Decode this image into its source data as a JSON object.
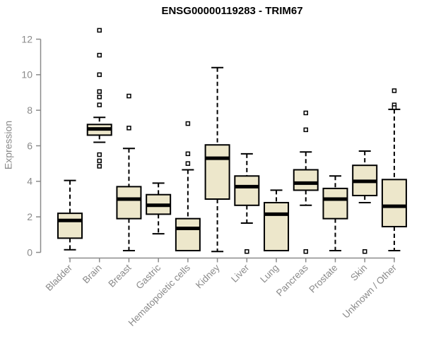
{
  "chart_data": {
    "type": "boxplot",
    "title": "ENSG00000119283 - TRIM67",
    "ylabel": "Expression",
    "xlabel": "",
    "ylim": [
      0,
      12
    ],
    "yticks": [
      0,
      2,
      4,
      6,
      8,
      10,
      12
    ],
    "grid": false,
    "legend": "none",
    "categories": [
      "Bladder",
      "Brain",
      "Breast",
      "Gastric",
      "Hematopoietic cells",
      "Kidney",
      "Liver",
      "Lung",
      "Pancreas",
      "Prostate",
      "Skin",
      "Unknown / Other"
    ],
    "series": [
      {
        "category": "Bladder",
        "low": 0.15,
        "q1": 0.8,
        "median": 1.8,
        "q3": 2.2,
        "high": 4.05,
        "outliers": []
      },
      {
        "category": "Brain",
        "low": 6.2,
        "q1": 6.6,
        "median": 6.95,
        "q3": 7.2,
        "high": 7.6,
        "outliers": [
          12.5,
          11.1,
          10.0,
          9.05,
          8.75,
          8.3,
          5.5,
          5.15,
          4.85
        ]
      },
      {
        "category": "Breast",
        "low": 0.1,
        "q1": 1.9,
        "median": 3.0,
        "q3": 3.7,
        "high": 5.85,
        "outliers": [
          8.8,
          7.0
        ]
      },
      {
        "category": "Gastric",
        "low": 1.05,
        "q1": 2.15,
        "median": 2.65,
        "q3": 3.25,
        "high": 3.9,
        "outliers": []
      },
      {
        "category": "Hematopoietic cells",
        "low": 0.1,
        "q1": 0.1,
        "median": 1.35,
        "q3": 1.9,
        "high": 4.65,
        "outliers": [
          7.25,
          5.55,
          5.0
        ]
      },
      {
        "category": "Kidney",
        "low": 0.05,
        "q1": 3.0,
        "median": 5.3,
        "q3": 6.05,
        "high": 10.4,
        "outliers": []
      },
      {
        "category": "Liver",
        "low": 1.65,
        "q1": 2.65,
        "median": 3.7,
        "q3": 4.3,
        "high": 5.55,
        "outliers": [
          0.05
        ]
      },
      {
        "category": "Lung",
        "low": 0.1,
        "q1": 0.1,
        "median": 2.15,
        "q3": 2.8,
        "high": 3.5,
        "outliers": []
      },
      {
        "category": "Pancreas",
        "low": 2.65,
        "q1": 3.5,
        "median": 3.9,
        "q3": 4.65,
        "high": 5.65,
        "outliers": [
          7.85,
          6.9,
          0.05
        ]
      },
      {
        "category": "Prostate",
        "low": 0.1,
        "q1": 1.9,
        "median": 3.0,
        "q3": 3.6,
        "high": 4.3,
        "outliers": []
      },
      {
        "category": "Skin",
        "low": 2.8,
        "q1": 3.2,
        "median": 4.0,
        "q3": 4.9,
        "high": 5.7,
        "outliers": [
          0.05
        ]
      },
      {
        "category": "Unknown / Other",
        "low": 0.1,
        "q1": 1.45,
        "median": 2.6,
        "q3": 4.1,
        "high": 8.05,
        "outliers": [
          9.1,
          8.3,
          8.15
        ]
      }
    ],
    "colors": {
      "box_fill": "#ede7cb",
      "box_stroke": "#000000",
      "median": "#000000",
      "whisker": "#000000",
      "axis": "#8a8a8a",
      "tick_label": "#8a8a8a",
      "title": "#000000",
      "background": "#ffffff"
    }
  }
}
